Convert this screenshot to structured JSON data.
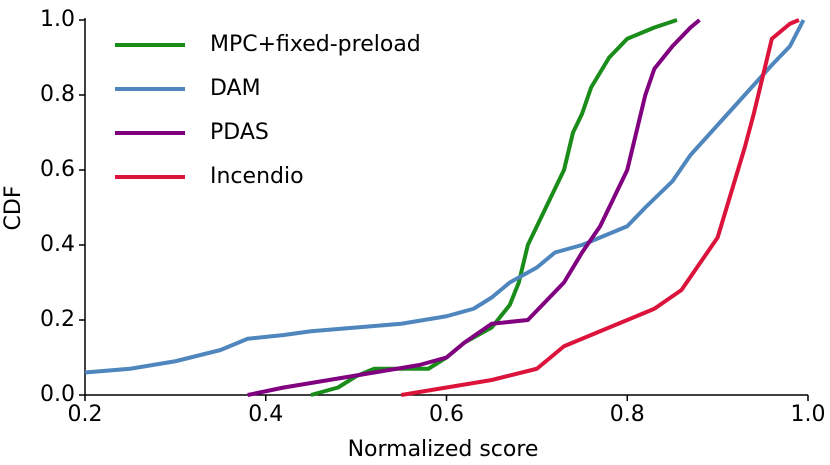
{
  "chart_data": {
    "type": "line",
    "xlabel": "Normalized score",
    "ylabel": "CDF",
    "xlim": [
      0.2,
      1
    ],
    "ylim": [
      0,
      1
    ],
    "xticks": [
      0.2,
      0.4,
      0.6,
      0.8,
      {
        "value": 1,
        "label": "1.0"
      }
    ],
    "yticks": [
      {
        "value": 0,
        "label": "0.0"
      },
      0.2,
      0.4,
      0.6,
      0.8,
      {
        "value": 1,
        "label": "1.0"
      }
    ],
    "legend": "upper left",
    "series": [
      {
        "name": "MPC+fixed-preload",
        "color": "#1a8c1a",
        "x": [
          0.45,
          0.48,
          0.5,
          0.52,
          0.58,
          0.6,
          0.62,
          0.65,
          0.67,
          0.68,
          0.69,
          0.7,
          0.72,
          0.73,
          0.74,
          0.75,
          0.76,
          0.78,
          0.8,
          0.83,
          0.855
        ],
        "values": [
          0,
          0.02,
          0.05,
          0.07,
          0.07,
          0.1,
          0.14,
          0.18,
          0.24,
          0.3,
          0.4,
          0.45,
          0.55,
          0.6,
          0.7,
          0.75,
          0.82,
          0.9,
          0.95,
          0.98,
          1
        ]
      },
      {
        "name": "DAM",
        "color": "#4f86bd",
        "x": [
          0.2,
          0.25,
          0.3,
          0.35,
          0.38,
          0.42,
          0.45,
          0.5,
          0.55,
          0.6,
          0.63,
          0.65,
          0.67,
          0.7,
          0.72,
          0.75,
          0.8,
          0.82,
          0.85,
          0.87,
          0.9,
          0.93,
          0.96,
          0.98,
          0.995
        ],
        "values": [
          0.06,
          0.07,
          0.09,
          0.12,
          0.15,
          0.16,
          0.17,
          0.18,
          0.19,
          0.21,
          0.23,
          0.26,
          0.3,
          0.34,
          0.38,
          0.4,
          0.45,
          0.5,
          0.57,
          0.64,
          0.72,
          0.8,
          0.88,
          0.93,
          1
        ]
      },
      {
        "name": "PDAS",
        "color": "#800080",
        "x": [
          0.38,
          0.42,
          0.47,
          0.52,
          0.57,
          0.6,
          0.62,
          0.65,
          0.69,
          0.71,
          0.73,
          0.75,
          0.77,
          0.79,
          0.8,
          0.81,
          0.82,
          0.83,
          0.85,
          0.87,
          0.88
        ],
        "values": [
          0,
          0.02,
          0.04,
          0.06,
          0.08,
          0.1,
          0.14,
          0.19,
          0.2,
          0.25,
          0.3,
          0.38,
          0.45,
          0.55,
          0.6,
          0.7,
          0.8,
          0.87,
          0.93,
          0.98,
          1
        ]
      },
      {
        "name": "Incendio",
        "color": "#dc143c",
        "x": [
          0.55,
          0.6,
          0.65,
          0.7,
          0.73,
          0.77,
          0.8,
          0.83,
          0.86,
          0.88,
          0.9,
          0.91,
          0.92,
          0.93,
          0.94,
          0.95,
          0.96,
          0.98,
          0.99
        ],
        "values": [
          0,
          0.02,
          0.04,
          0.07,
          0.13,
          0.17,
          0.2,
          0.23,
          0.28,
          0.35,
          0.42,
          0.5,
          0.58,
          0.66,
          0.75,
          0.85,
          0.95,
          0.99,
          1
        ]
      }
    ]
  }
}
